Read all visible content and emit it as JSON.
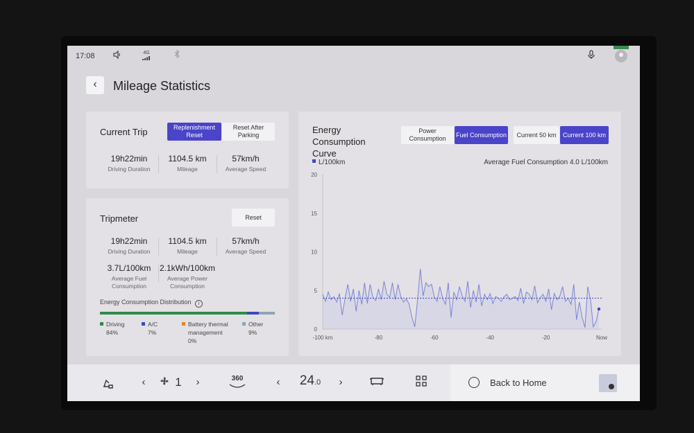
{
  "status": {
    "time": "17:08",
    "network": "4G"
  },
  "header": {
    "title": "Mileage Statistics"
  },
  "current_trip": {
    "title": "Current Trip",
    "buttons": [
      "Replenishment Reset",
      "Reset After Parking"
    ],
    "stats": [
      {
        "value": "19h22min",
        "label": "Driving Duration"
      },
      {
        "value": "1104.5 km",
        "label": "Mileage"
      },
      {
        "value": "57km/h",
        "label": "Average Speed"
      }
    ]
  },
  "tripmeter": {
    "title": "Tripmeter",
    "reset_label": "Reset",
    "stats": [
      {
        "value": "19h22min",
        "label": "Driving Duration"
      },
      {
        "value": "1104.5 km",
        "label": "Mileage"
      },
      {
        "value": "57km/h",
        "label": "Average Speed"
      }
    ],
    "consumption": [
      {
        "value": "3.7L/100km",
        "label": "Average Fuel Consumption"
      },
      {
        "value": "2.1kWh/100km",
        "label": "Average Power Consumption"
      }
    ],
    "distribution_title": "Energy Consumption Distribution",
    "distribution": [
      {
        "name": "Driving",
        "percent": "84%",
        "fraction": 0.84,
        "color": "#2e8b4a"
      },
      {
        "name": "A/C",
        "percent": "7%",
        "fraction": 0.07,
        "color": "#3b48c4"
      },
      {
        "name": "Battery thermal management",
        "percent": "0%",
        "fraction": 0.0,
        "color": "#e08a1e"
      },
      {
        "name": "Other",
        "percent": "9%",
        "fraction": 0.09,
        "color": "#8fa4b8"
      }
    ]
  },
  "energy_curve": {
    "title": "Energy Consumption Curve",
    "mode_buttons": [
      "Power Consumption",
      "Fuel Consumption"
    ],
    "range_buttons": [
      "Current 50 km",
      "Current 100 km"
    ],
    "colors": {
      "line": "#7b83d8",
      "fill": "#c9cde4",
      "avg": "#3a40b0",
      "marker": "#3b48c4"
    }
  },
  "chart_data": {
    "type": "line",
    "legend": "L/100km",
    "annotation": "Average Fuel Consumption 4.0 L/100km",
    "average": 4.0,
    "ylim": [
      0,
      20
    ],
    "yticks": [
      "0",
      "5",
      "10",
      "15",
      "20"
    ],
    "xlim": [
      -100,
      0
    ],
    "xticks": [
      "-100 km",
      "-80",
      "-60",
      "-40",
      "-20",
      "Now"
    ],
    "series": [
      {
        "x": [
          -100,
          -99,
          -98,
          -97,
          -96,
          -95,
          -94,
          -93,
          -92,
          -91,
          -90,
          -89,
          -88,
          -87,
          -86,
          -85,
          -84,
          -83,
          -82,
          -81,
          -80,
          -79,
          -78,
          -77,
          -76,
          -75,
          -74,
          -73,
          -72,
          -71,
          -70,
          -69,
          -68,
          -67,
          -66,
          -65,
          -64,
          -63,
          -62,
          -61,
          -60,
          -59,
          -58,
          -57,
          -56,
          -55,
          -54,
          -53,
          -52,
          -51,
          -50,
          -49,
          -48,
          -47,
          -46,
          -45,
          -44,
          -43,
          -42,
          -41,
          -40,
          -39,
          -38,
          -37,
          -36,
          -35,
          -34,
          -33,
          -32,
          -31,
          -30,
          -29,
          -28,
          -27,
          -26,
          -25,
          -24,
          -23,
          -22,
          -21,
          -20,
          -19,
          -18,
          -17,
          -16,
          -15,
          -14,
          -13,
          -12,
          -11,
          -10,
          -9,
          -8,
          -7,
          -6,
          -5,
          -4,
          -3,
          -2,
          -1
        ],
        "y": [
          4.5,
          3.6,
          4.8,
          3.8,
          4.2,
          3.5,
          4.6,
          1.8,
          4.0,
          5.8,
          3.6,
          5.2,
          2.3,
          5.0,
          3.2,
          6.0,
          3.3,
          5.8,
          4.1,
          3.7,
          5.2,
          3.8,
          6.2,
          4.5,
          4.1,
          6.0,
          3.8,
          5.8,
          4.2,
          3.5,
          3.9,
          3.2,
          1.5,
          0.3,
          3.8,
          7.8,
          4.3,
          6.0,
          5.5,
          5.8,
          4.2,
          3.6,
          5.5,
          4.0,
          3.2,
          6.0,
          1.5,
          4.8,
          3.8,
          5.5,
          4.3,
          3.6,
          6.2,
          2.8,
          5.0,
          3.5,
          5.8,
          3.0,
          4.5,
          3.8,
          4.6,
          3.3,
          4.2,
          4.0,
          3.6,
          4.2,
          4.5,
          3.8,
          4.0,
          4.2,
          3.7,
          5.3,
          3.3,
          4.8,
          4.5,
          3.8,
          5.6,
          3.4,
          4.1,
          4.5,
          3.6,
          5.2,
          2.5,
          4.6,
          3.8,
          4.3,
          5.5,
          3.6,
          4.0,
          3.2,
          5.8,
          1.2,
          3.5,
          1.5,
          0.2,
          5.5,
          3.8,
          0.3,
          1.0,
          2.6
        ]
      }
    ]
  },
  "bottom_bar": {
    "fan_level": "1",
    "temp_main": "24",
    "temp_decimal": ".0",
    "view_360": "360",
    "home_label": "Back to Home"
  }
}
